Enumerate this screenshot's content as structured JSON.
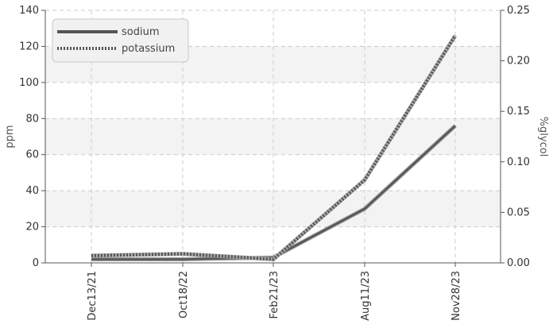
{
  "chart_data": {
    "type": "line",
    "x": [
      "Dec13/21",
      "Oct18/22",
      "Feb21/23",
      "Aug11/23",
      "Nov28/23"
    ],
    "xlabel": "",
    "ylabel_left": "ppm",
    "ylabel_right": "%glycol",
    "ylim_left": [
      0,
      140
    ],
    "yticks_left": [
      "0",
      "20",
      "40",
      "60",
      "80",
      "100",
      "120",
      "140"
    ],
    "ylim_right": [
      0,
      0.25
    ],
    "yticks_right": [
      "0.00",
      "0.05",
      "0.10",
      "0.15",
      "0.20",
      "0.25"
    ],
    "grid": true,
    "legend_position": "top-left",
    "series": [
      {
        "name": "sodium",
        "axis": "left",
        "style": "solid",
        "color": "#555555",
        "values": [
          2,
          2,
          3,
          30,
          76
        ]
      },
      {
        "name": "potassium",
        "axis": "left",
        "style": "dotted",
        "color": "#555555",
        "values": [
          4,
          5,
          2,
          46,
          126
        ]
      }
    ]
  }
}
